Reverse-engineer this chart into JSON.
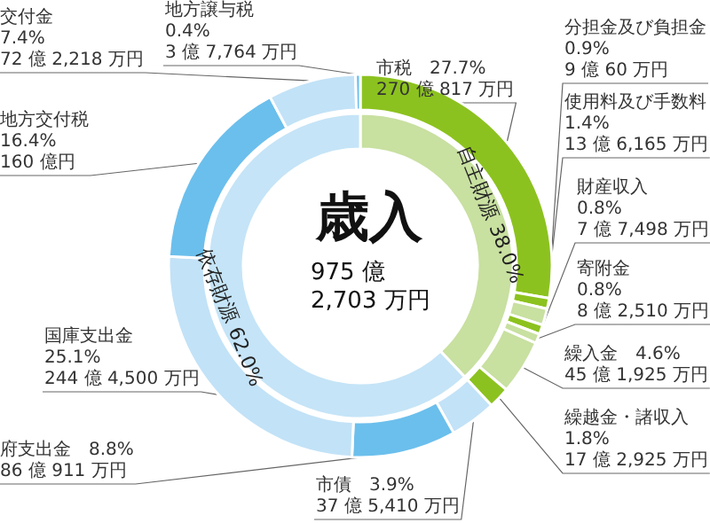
{
  "chart_data": [
    {
      "type": "donut",
      "title": "歳入",
      "subtitle": "975 億\n2,703 万円",
      "categories": [
        "市税",
        "分担金及び負担金",
        "使用料及び手数料",
        "財産収入",
        "寄附金",
        "繰入金",
        "繰越金・諸収入",
        "市債",
        "府支出金",
        "国庫支出金",
        "地方交付税",
        "交付金",
        "地方譲与税"
      ],
      "values": [
        27.7,
        0.9,
        1.4,
        0.8,
        0.8,
        4.6,
        1.8,
        3.9,
        8.8,
        25.1,
        16.4,
        7.4,
        0.4
      ],
      "value_labels": [
        "27.7%\n270 億 817 万円",
        "0.9%\n9 億 60 万円",
        "1.4%\n13 億 6,165 万円",
        "0.8%\n7 億 7,498 万円",
        "0.8%\n8 億 2,510 万円",
        "4.6%\n45 億 1,925 万円",
        "1.8%\n17 億 2,925 万円",
        "3.9%\n37 億 5,410 万円",
        "8.8%\n86 億 911 万円",
        "25.1%\n244 億 4,500 万円",
        "16.4%\n160 億円",
        "7.4%\n72 億 2,218 万円",
        "0.4%\n3 億 7,764 万円"
      ],
      "colors": [
        "#8cc21f",
        "#8cc21f",
        "#c8e0a0",
        "#8cc21f",
        "#c8e0a0",
        "#c8e0a0",
        "#8cc21f",
        "#c2e2f7",
        "#6bbfec",
        "#c2e2f7",
        "#6bbfec",
        "#c2e2f7",
        "#6bbfec"
      ]
    },
    {
      "type": "donut",
      "categories": [
        "自主財源",
        "依存財源"
      ],
      "values": [
        38.0,
        62.0
      ],
      "value_labels": [
        "38.0%",
        "62.0%"
      ],
      "colors": [
        "#c8e0a0",
        "#c5e4f7"
      ]
    }
  ]
}
